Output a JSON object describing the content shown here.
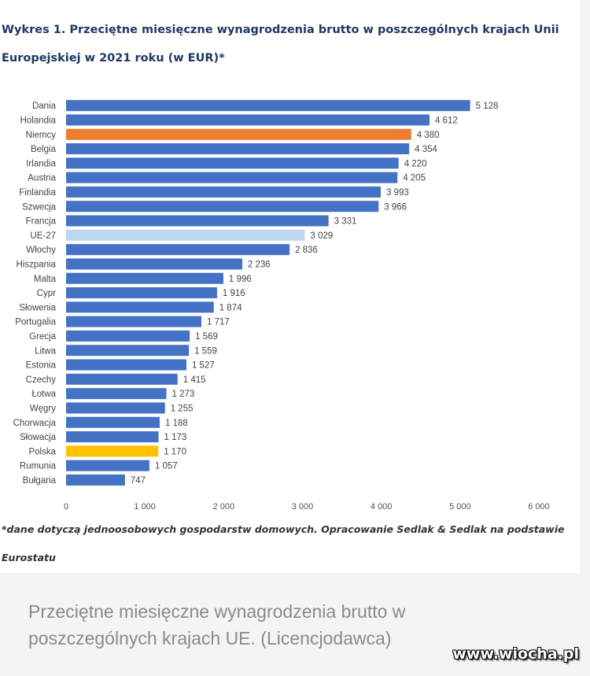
{
  "title": "Wykres 1. Przeciętne miesięczne wynagrodzenia brutto w poszczególnych krajach Unii Europejskiej w 2021 roku (w EUR)*",
  "footnote": "*dane dotyczą jednoosobowych gospodarstw domowych. Opracowanie Sedlak & Sedlak na podstawie Eurostatu",
  "caption": "Przeciętne miesięczne wynagrodzenia brutto w poszczególnych krajach UE. (Licencjodawca)",
  "watermark": "www.wiocha.pl",
  "colors": {
    "default": "#4472c4",
    "highlight_germany": "#ed7d31",
    "highlight_eu": "#bdd7ee",
    "highlight_poland": "#ffc000"
  },
  "chart_data": {
    "type": "bar",
    "orientation": "horizontal",
    "categories": [
      "Dania",
      "Holandia",
      "Niemcy",
      "Belgia",
      "Irlandia",
      "Austria",
      "Finlandia",
      "Szwecja",
      "Francja",
      "UE-27",
      "Włochy",
      "Hiszpania",
      "Malta",
      "Cypr",
      "Słowenia",
      "Portugalia",
      "Grecja",
      "Litwa",
      "Estonia",
      "Czechy",
      "Łotwa",
      "Węgry",
      "Chorwacja",
      "Słowacja",
      "Polska",
      "Rumunia",
      "Bułgaria"
    ],
    "values": [
      5128,
      4612,
      4380,
      4354,
      4220,
      4205,
      3993,
      3966,
      3331,
      3029,
      2836,
      2236,
      1996,
      1916,
      1874,
      1717,
      1569,
      1559,
      1527,
      1415,
      1273,
      1255,
      1188,
      1173,
      1170,
      1057,
      747
    ],
    "value_labels": [
      "5 128",
      "4 612",
      "4 380",
      "4 354",
      "4 220",
      "4 205",
      "3 993",
      "3 966",
      "3 331",
      "3 029",
      "2 836",
      "2 236",
      "1 996",
      "1 916",
      "1 874",
      "1 717",
      "1 569",
      "1 559",
      "1 527",
      "1 415",
      "1 273",
      "1 255",
      "1 188",
      "1 173",
      "1 170",
      "1 057",
      "747"
    ],
    "highlights": {
      "Niemcy": "highlight_germany",
      "UE-27": "highlight_eu",
      "Polska": "highlight_poland"
    },
    "xlim": [
      0,
      6000
    ],
    "x_ticks": [
      0,
      1000,
      2000,
      3000,
      4000,
      5000,
      6000
    ],
    "x_tick_labels": [
      "0",
      "1 000",
      "2 000",
      "3 000",
      "4 000",
      "5 000",
      "6 000"
    ],
    "grid": false
  }
}
